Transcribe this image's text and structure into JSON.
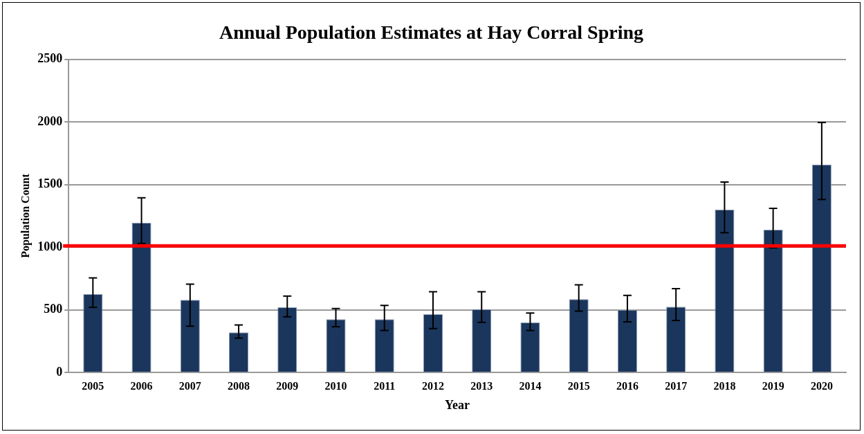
{
  "chart_data": {
    "type": "bar",
    "title": "Annual Population Estimates at Hay Corral Spring",
    "xlabel": "Year",
    "ylabel": "Population Count",
    "categories": [
      "2005",
      "2006",
      "2007",
      "2008",
      "2009",
      "2010",
      "2011",
      "2012",
      "2013",
      "2014",
      "2015",
      "2016",
      "2017",
      "2018",
      "2019",
      "2020"
    ],
    "values": [
      625,
      1195,
      580,
      320,
      520,
      425,
      425,
      465,
      505,
      400,
      585,
      500,
      525,
      1300,
      1140,
      1660
    ],
    "errors": [
      [
        520,
        755
      ],
      [
        1030,
        1395
      ],
      [
        370,
        705
      ],
      [
        275,
        380
      ],
      [
        445,
        610
      ],
      [
        365,
        510
      ],
      [
        335,
        535
      ],
      [
        350,
        645
      ],
      [
        400,
        645
      ],
      [
        335,
        475
      ],
      [
        490,
        700
      ],
      [
        405,
        615
      ],
      [
        415,
        670
      ],
      [
        1115,
        1520
      ],
      [
        995,
        1310
      ],
      [
        1380,
        1995
      ]
    ],
    "color": "#1b365d",
    "ylim": [
      0,
      2500
    ],
    "yticks": [
      0,
      500,
      1000,
      1500,
      2000,
      2500
    ],
    "grid": "y",
    "legend": false,
    "ref_lines": [
      {
        "axis": "y",
        "value": 1010,
        "color": "#ff0000"
      }
    ]
  }
}
